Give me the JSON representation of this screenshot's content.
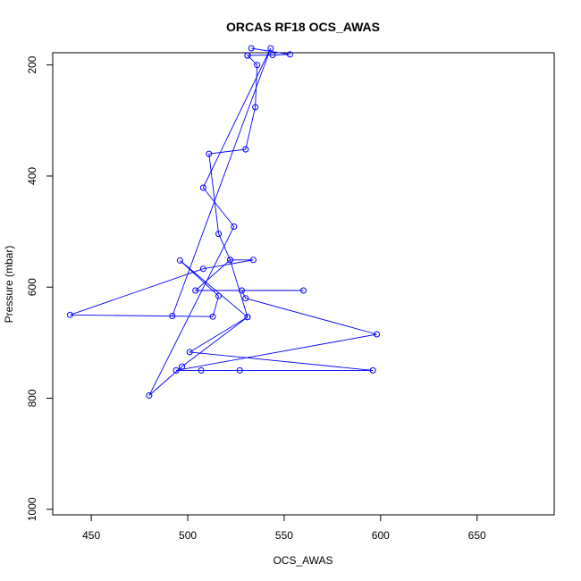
{
  "chart_data": {
    "type": "scatter",
    "title": "ORCAS RF18 OCS_AWAS",
    "xlabel": "OCS_AWAS",
    "ylabel": "Pressure (mbar)",
    "xlim": [
      430,
      690
    ],
    "ylim": [
      1010,
      178
    ],
    "y_reversed": true,
    "x_ticks": [
      450,
      500,
      550,
      600,
      650
    ],
    "y_ticks": [
      200,
      400,
      600,
      800,
      1000
    ],
    "grid": false,
    "series": [
      {
        "color": "#0000ff",
        "marker": "open-circle",
        "line": true,
        "points": [
          {
            "x": 533,
            "y": 170
          },
          {
            "x": 553,
            "y": 181
          },
          {
            "x": 544,
            "y": 182
          },
          {
            "x": 531,
            "y": 183
          },
          {
            "x": 531,
            "y": 183
          },
          {
            "x": 536,
            "y": 200
          },
          {
            "x": 535,
            "y": 276
          },
          {
            "x": 530,
            "y": 352
          },
          {
            "x": 511,
            "y": 360
          },
          {
            "x": 516,
            "y": 504
          },
          {
            "x": 522,
            "y": 551
          },
          {
            "x": 534,
            "y": 551
          },
          {
            "x": 508,
            "y": 567
          },
          {
            "x": 439,
            "y": 650
          },
          {
            "x": 513,
            "y": 653
          },
          {
            "x": 516,
            "y": 616
          },
          {
            "x": 496,
            "y": 552
          },
          {
            "x": 531,
            "y": 654
          },
          {
            "x": 522,
            "y": 551
          },
          {
            "x": 504,
            "y": 606
          },
          {
            "x": 560,
            "y": 606
          },
          {
            "x": 528,
            "y": 606
          },
          {
            "x": 530,
            "y": 620
          },
          {
            "x": 598,
            "y": 685
          },
          {
            "x": 494,
            "y": 750
          },
          {
            "x": 507,
            "y": 750
          },
          {
            "x": 527,
            "y": 750
          },
          {
            "x": 596,
            "y": 750
          },
          {
            "x": 501,
            "y": 717
          },
          {
            "x": 531,
            "y": 654
          },
          {
            "x": 497,
            "y": 743
          },
          {
            "x": 480,
            "y": 795
          },
          {
            "x": 524,
            "y": 491
          },
          {
            "x": 508,
            "y": 421
          },
          {
            "x": 543,
            "y": 170
          },
          {
            "x": 492,
            "y": 652
          }
        ]
      }
    ]
  }
}
